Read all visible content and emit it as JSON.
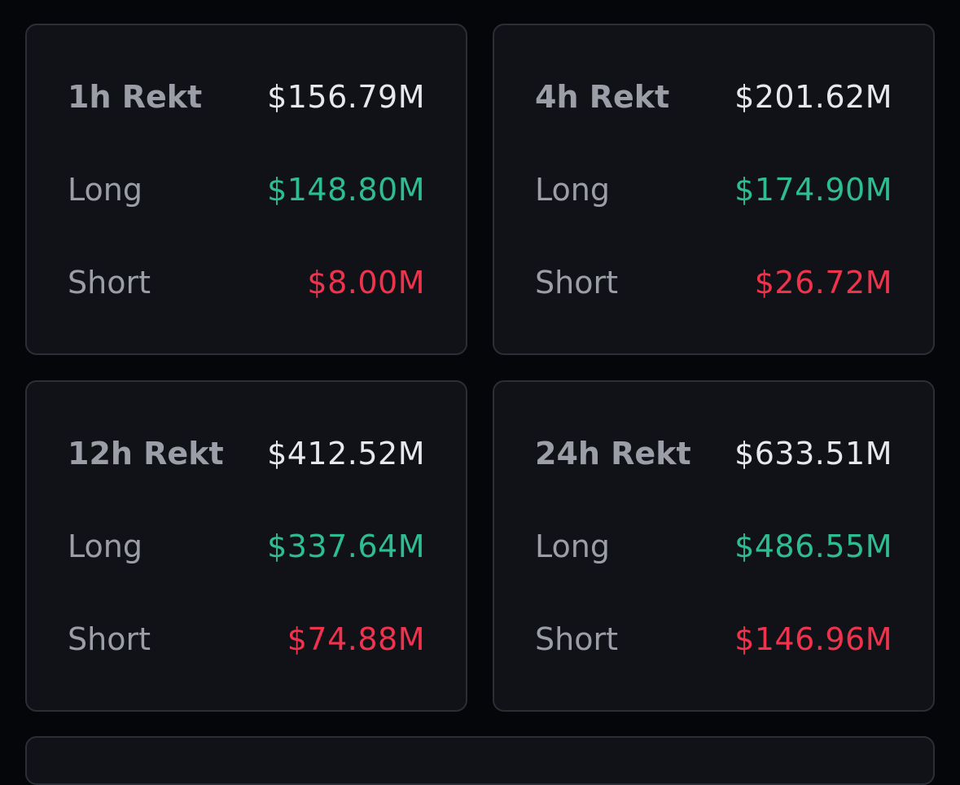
{
  "cards": [
    {
      "title": "1h Rekt",
      "total": "$156.79M",
      "long_label": "Long",
      "long": "$148.80M",
      "short_label": "Short",
      "short": "$8.00M"
    },
    {
      "title": "4h Rekt",
      "total": "$201.62M",
      "long_label": "Long",
      "long": "$174.90M",
      "short_label": "Short",
      "short": "$26.72M"
    },
    {
      "title": "12h Rekt",
      "total": "$412.52M",
      "long_label": "Long",
      "long": "$337.64M",
      "short_label": "Short",
      "short": "$74.88M"
    },
    {
      "title": "24h Rekt",
      "total": "$633.51M",
      "long_label": "Long",
      "long": "$486.55M",
      "short_label": "Short",
      "short": "$146.96M"
    }
  ],
  "colors": {
    "background": "#05060a",
    "card_background": "#111218",
    "card_border": "#2c2e36",
    "label": "#9b9ea6",
    "total": "#e7e8ec",
    "long": "#2ebd91",
    "short": "#f0334c"
  }
}
